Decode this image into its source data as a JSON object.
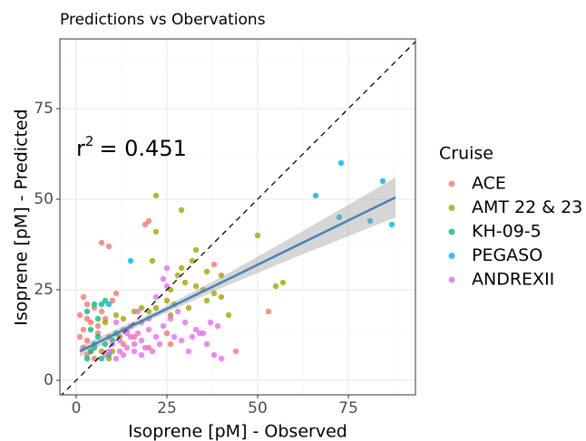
{
  "chart_data": {
    "type": "scatter",
    "title": "Predictions vs Obervations",
    "x_label": "Isoprene [pM] - Observed",
    "y_label": "Isoprene [pM] - Predicted",
    "legend_title": "Cruise",
    "legend_position": "right",
    "annotation": {
      "base": "r",
      "sup": "2",
      "text": "= 0.451"
    },
    "xlim": [
      -4.5,
      93.5
    ],
    "ylim": [
      -4,
      94.25
    ],
    "xticks": [
      0,
      25,
      50,
      75
    ],
    "yticks": [
      0,
      25,
      50,
      75
    ],
    "xminor": [
      12.5,
      37.5,
      62.5,
      87.5
    ],
    "yminor": [
      12.5,
      37.5,
      62.5,
      87.5
    ],
    "grid": true,
    "identity_line": true,
    "fit": {
      "color": "#4682B4",
      "x": [
        1,
        20,
        40,
        60,
        88
      ],
      "y": [
        8.0,
        17.3,
        27.0,
        36.8,
        50.5
      ],
      "lower": [
        6.5,
        16.5,
        25.5,
        33.8,
        45.0
      ],
      "upper": [
        9.5,
        18.1,
        28.5,
        39.8,
        56.0
      ]
    },
    "series": [
      {
        "name": "ACE",
        "color": "#F8766D",
        "x": [
          20,
          19,
          7,
          9,
          2,
          3,
          5,
          1,
          3,
          4,
          2,
          6,
          1,
          3,
          5,
          2,
          4,
          6,
          8,
          10,
          7,
          11,
          14,
          16,
          13,
          20,
          25,
          53,
          44,
          38,
          26,
          18,
          3,
          5,
          9
        ],
        "y": [
          44,
          43,
          38,
          37,
          23,
          21,
          20,
          18,
          17,
          16,
          14,
          13,
          12,
          11,
          10,
          9,
          8,
          15,
          17,
          22,
          19,
          24,
          14,
          12,
          10,
          9,
          13,
          19,
          8,
          32,
          10,
          16,
          7,
          6,
          12
        ]
      },
      {
        "name": "AMT 22 & 23",
        "color": "#A3A500",
        "x": [
          22,
          29,
          22,
          50,
          57,
          55,
          33,
          32,
          29,
          36,
          40,
          33,
          35,
          38,
          25,
          22,
          18,
          16,
          20,
          26,
          30,
          26,
          13,
          11,
          8,
          12,
          10,
          7,
          9,
          42,
          31,
          36,
          40,
          28,
          21,
          27
        ],
        "y": [
          51,
          47,
          41,
          40,
          27,
          26,
          36,
          33,
          31,
          30,
          29,
          26,
          25,
          24,
          22,
          20,
          20,
          19,
          19,
          18,
          27,
          25,
          17,
          18,
          16,
          12,
          8,
          8,
          6,
          18,
          20,
          22,
          23,
          29,
          33,
          21
        ]
      },
      {
        "name": "KH-09-5",
        "color": "#00BF7D",
        "x": [
          5,
          7,
          3,
          8,
          6,
          4,
          6,
          8,
          5,
          9,
          7,
          4,
          11,
          3,
          10
        ],
        "y": [
          21,
          21,
          19,
          22,
          17,
          14,
          12,
          10,
          9,
          7,
          6,
          8,
          13,
          6,
          11
        ]
      },
      {
        "name": "PEGASO",
        "color": "#00B0F6",
        "x": [
          73,
          66,
          72.5,
          84.5,
          81,
          87,
          15,
          9,
          5
        ],
        "y": [
          60,
          51,
          45,
          55,
          44,
          43,
          33,
          21,
          10
        ]
      },
      {
        "name": "ANDREXII",
        "color": "#E76BF3",
        "x": [
          25,
          24,
          28,
          26,
          33,
          32,
          35,
          37,
          29,
          38,
          31,
          20,
          22,
          18,
          16,
          14,
          12,
          10,
          8,
          15,
          17,
          19,
          21,
          13,
          11,
          9,
          23,
          27,
          15,
          20,
          12,
          14,
          16,
          18,
          24,
          39,
          40,
          30,
          36,
          17,
          25,
          22,
          34,
          11,
          13
        ],
        "y": [
          31,
          28,
          19,
          17,
          14,
          12,
          13,
          16,
          11,
          7,
          8,
          14,
          12,
          11,
          10,
          9,
          8,
          10,
          7,
          12,
          13,
          9,
          8,
          7,
          6,
          8,
          10,
          12,
          15,
          17,
          11,
          13,
          8,
          7,
          15,
          15,
          6,
          16,
          10,
          19,
          26,
          23,
          13,
          16,
          14
        ]
      }
    ]
  }
}
